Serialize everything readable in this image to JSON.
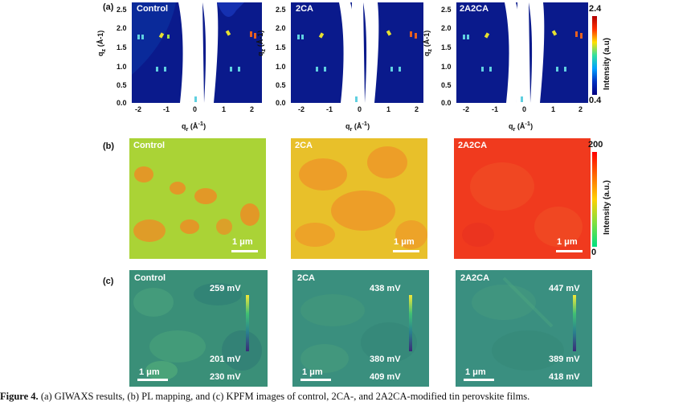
{
  "figure": {
    "panel_a": {
      "letter": "(a)",
      "titles": [
        "Control",
        "2CA",
        "2A2CA"
      ],
      "x_label": "q",
      "x_sub": "r",
      "x_unit": " (Å",
      "x_unit_sup": "-1",
      "x_unit_end": ")",
      "y_label": "q",
      "y_sub": "z",
      "y_unit": " (Å-1)",
      "x_ticks": [
        "-2",
        "-1",
        "0",
        "1",
        "2"
      ],
      "y_ticks": [
        "2.5",
        "2.0",
        "1.5",
        "1.0",
        "0.5",
        "0.0"
      ],
      "colorbar": {
        "max": "2.4",
        "min": "0.4",
        "label": "Intensity (a.u)"
      }
    },
    "panel_b": {
      "letter": "(b)",
      "titles": [
        "Control",
        "2CA",
        "2A2CA"
      ],
      "scalebar": "1 μm",
      "colorbar": {
        "max": "200",
        "min": "0",
        "label": "Intensity (a.u.)"
      }
    },
    "panel_c": {
      "letter": "(c)",
      "titles": [
        "Control",
        "2CA",
        "2A2CA"
      ],
      "scalebar": "1 μm",
      "maps": [
        {
          "max": "259 mV",
          "min": "201 mV",
          "value": "230 mV"
        },
        {
          "max": "438 mV",
          "min": "380 mV",
          "value": "409 mV"
        },
        {
          "max": "447 mV",
          "min": "389 mV",
          "value": "418 mV"
        }
      ]
    }
  },
  "caption": {
    "label": "Figure 4.",
    "text": " (a) GIWAXS results, (b) PL mapping, and (c) KPFM images of control, 2CA-, and 2A2CA-modified tin perovskite films."
  },
  "colors": {
    "giwaxs_bg": "#0a1a8c",
    "pl_green": "#9ad23a",
    "pl_red": "#f03a1e",
    "kpfm_green": "#3a8f78"
  }
}
